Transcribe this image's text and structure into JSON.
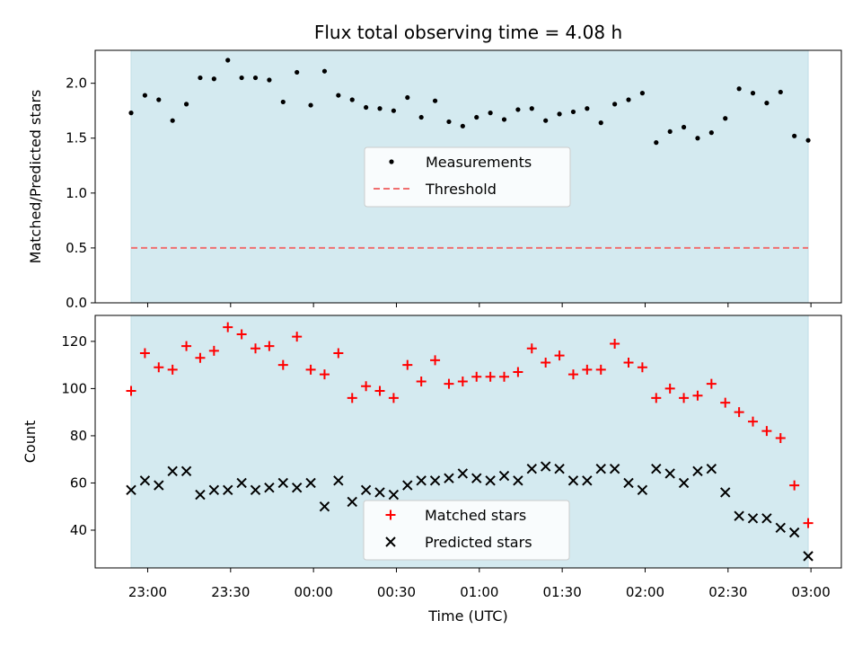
{
  "chart_data": {
    "title": "Flux total observing time = 4.08 h",
    "xlabel": "Time (UTC)",
    "x_tick_labels": [
      "23:00",
      "23:30",
      "00:00",
      "00:30",
      "01:00",
      "01:30",
      "02:00",
      "02:30",
      "03:00"
    ],
    "x_tick_minutes": [
      0,
      30,
      60,
      90,
      120,
      150,
      180,
      210,
      240
    ],
    "xlim_minutes": [
      -19,
      251
    ],
    "shaded_span_minutes": [
      -6,
      239
    ],
    "shade_color": "#d4eaf0",
    "panels": [
      {
        "type": "scatter",
        "ylabel": "Matched/Predicted stars",
        "ylim": [
          0,
          2.3
        ],
        "y_ticks": [
          0.0,
          0.5,
          1.0,
          1.5,
          2.0
        ],
        "y_tick_labels": [
          "0.0",
          "0.5",
          "1.0",
          "1.5",
          "2.0"
        ],
        "legend_position": "center",
        "series": [
          {
            "name": "Measurements",
            "marker": "dot",
            "color": "#000000",
            "x_minutes": [
              -6,
              -1,
              4,
              9,
              14,
              19,
              24,
              29,
              34,
              39,
              44,
              49,
              54,
              59,
              64,
              69,
              74,
              79,
              84,
              89,
              94,
              99,
              104,
              109,
              114,
              119,
              124,
              129,
              134,
              139,
              144,
              149,
              154,
              159,
              164,
              169,
              174,
              179,
              184,
              189,
              194,
              199,
              204,
              209,
              214,
              219,
              224,
              229,
              234,
              239
            ],
            "values": [
              1.73,
              1.89,
              1.85,
              1.66,
              1.81,
              2.05,
              2.04,
              2.21,
              2.05,
              2.05,
              2.03,
              1.83,
              2.1,
              1.8,
              2.11,
              1.89,
              1.85,
              1.78,
              1.77,
              1.75,
              1.87,
              1.69,
              1.84,
              1.65,
              1.61,
              1.69,
              1.73,
              1.67,
              1.76,
              1.77,
              1.66,
              1.72,
              1.74,
              1.77,
              1.64,
              1.81,
              1.85,
              1.91,
              1.46,
              1.56,
              1.6,
              1.5,
              1.55,
              1.68,
              1.95,
              1.91,
              1.82,
              1.92,
              1.52,
              1.48
            ]
          },
          {
            "name": "Threshold",
            "style": "dashed-line",
            "color": "#f07070",
            "y": 0.5
          }
        ]
      },
      {
        "type": "scatter",
        "ylabel": "Count",
        "ylim": [
          24,
          131
        ],
        "y_ticks": [
          40,
          60,
          80,
          100,
          120
        ],
        "y_tick_labels": [
          "40",
          "60",
          "80",
          "100",
          "120"
        ],
        "legend_position": "bottom-center",
        "series": [
          {
            "name": "Matched stars",
            "marker": "plus",
            "color": "#ff0000",
            "x_minutes": [
              -6,
              -1,
              4,
              9,
              14,
              19,
              24,
              29,
              34,
              39,
              44,
              49,
              54,
              59,
              64,
              69,
              74,
              79,
              84,
              89,
              94,
              99,
              104,
              109,
              114,
              119,
              124,
              129,
              134,
              139,
              144,
              149,
              154,
              159,
              164,
              169,
              174,
              179,
              184,
              189,
              194,
              199,
              204,
              209,
              214,
              219,
              224,
              229,
              234,
              239
            ],
            "values": [
              99,
              115,
              109,
              108,
              118,
              113,
              116,
              126,
              123,
              117,
              118,
              110,
              122,
              108,
              106,
              115,
              96,
              101,
              99,
              96,
              110,
              103,
              112,
              102,
              103,
              105,
              105,
              105,
              107,
              117,
              111,
              114,
              106,
              108,
              108,
              119,
              111,
              109,
              96,
              100,
              96,
              97,
              102,
              94,
              90,
              86,
              82,
              79,
              59,
              43
            ]
          },
          {
            "name": "Predicted stars",
            "marker": "x",
            "color": "#000000",
            "x_minutes": [
              -6,
              -1,
              4,
              9,
              14,
              19,
              24,
              29,
              34,
              39,
              44,
              49,
              54,
              59,
              64,
              69,
              74,
              79,
              84,
              89,
              94,
              99,
              104,
              109,
              114,
              119,
              124,
              129,
              134,
              139,
              144,
              149,
              154,
              159,
              164,
              169,
              174,
              179,
              184,
              189,
              194,
              199,
              204,
              209,
              214,
              219,
              224,
              229,
              234,
              239
            ],
            "values": [
              57,
              61,
              59,
              65,
              65,
              55,
              57,
              57,
              60,
              57,
              58,
              60,
              58,
              60,
              50,
              61,
              52,
              57,
              56,
              55,
              59,
              61,
              61,
              62,
              64,
              62,
              61,
              63,
              61,
              66,
              67,
              66,
              61,
              61,
              66,
              66,
              60,
              57,
              66,
              64,
              60,
              65,
              66,
              56,
              46,
              45,
              45,
              41,
              39,
              29
            ]
          }
        ]
      }
    ]
  }
}
